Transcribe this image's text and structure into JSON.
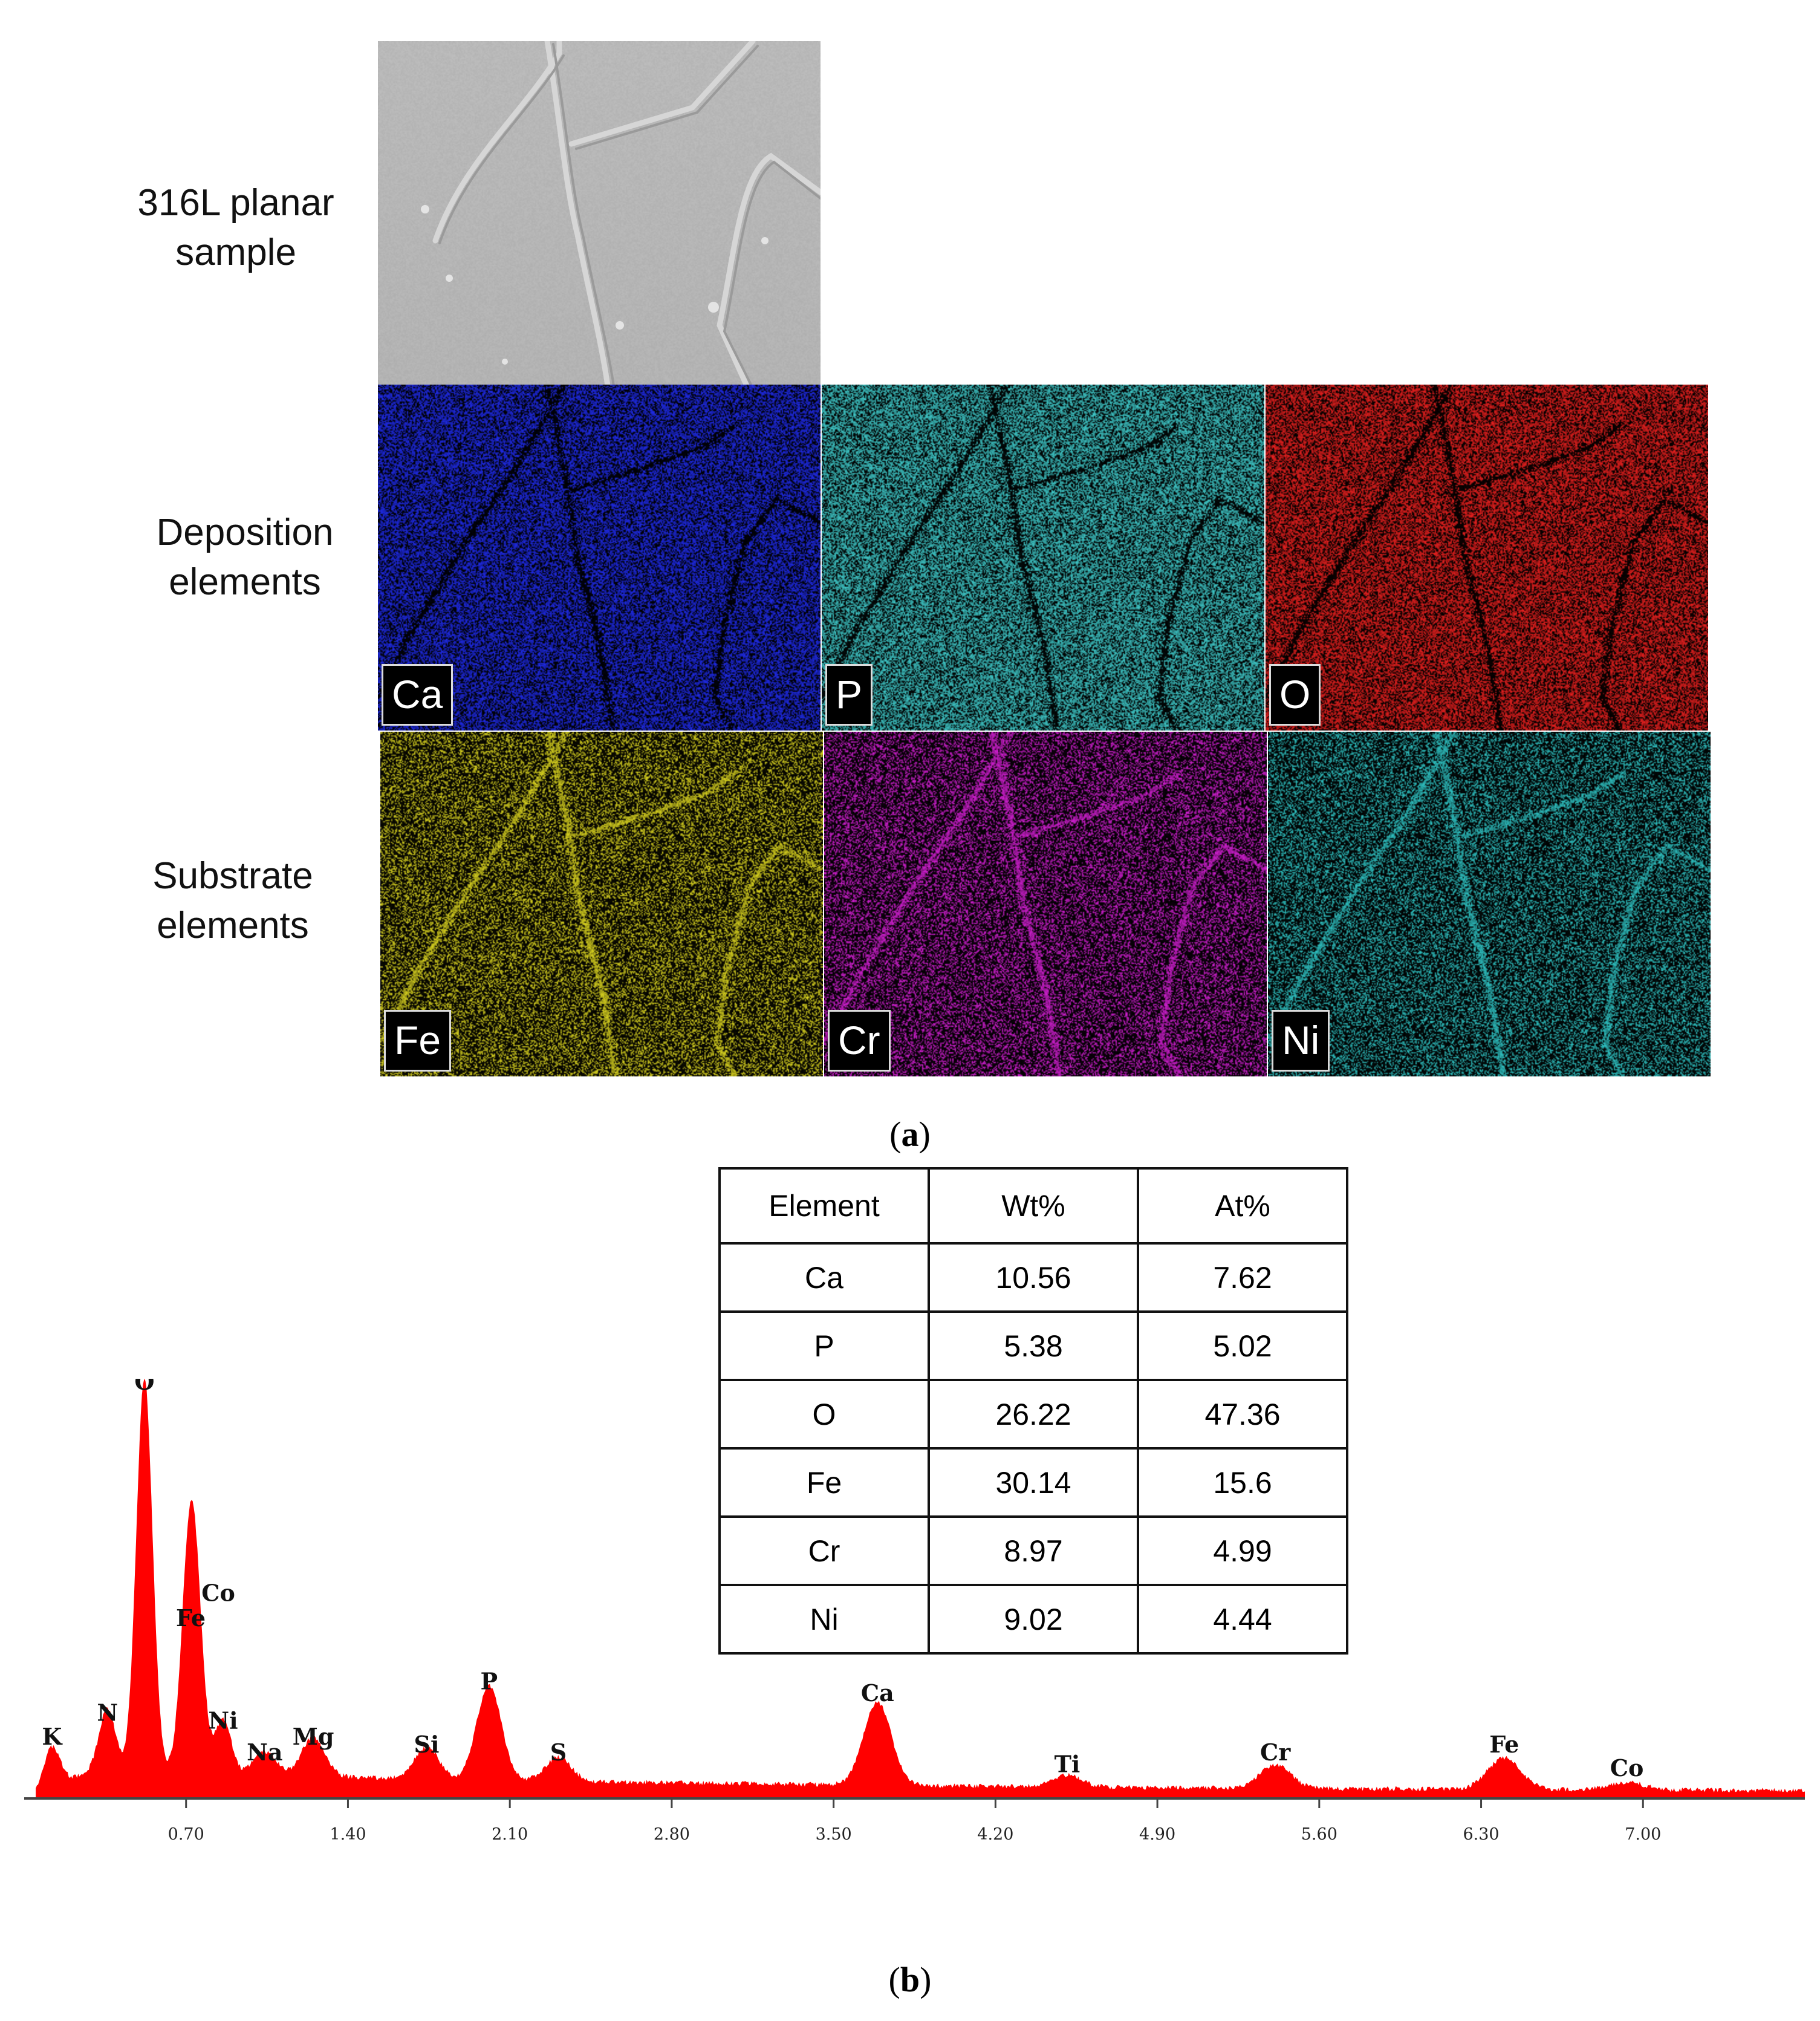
{
  "panel_a": {
    "caption_label": "a",
    "rows": [
      {
        "line1": "316L planar",
        "line2": "sample"
      },
      {
        "line1": "Deposition",
        "line2": "elements"
      },
      {
        "line1": "Substrate",
        "line2": "elements"
      }
    ],
    "maps": [
      {
        "element": "Ca",
        "color": "#1f2be8",
        "boundaries": "dark"
      },
      {
        "element": "P",
        "color": "#3fc8c8",
        "boundaries": "dark"
      },
      {
        "element": "O",
        "color": "#e8201f",
        "boundaries": "dark"
      },
      {
        "element": "Fe",
        "color": "#d9d320",
        "boundaries": "bright"
      },
      {
        "element": "Cr",
        "color": "#d21fd2",
        "boundaries": "bright"
      },
      {
        "element": "Ni",
        "color": "#2fc3c3",
        "boundaries": "bright"
      }
    ],
    "sem_image_color": "#b9b9b9"
  },
  "composition_table": {
    "headers": [
      "Element",
      "Wt%",
      "At%"
    ],
    "rows": [
      [
        "Ca",
        "10.56",
        "7.62"
      ],
      [
        "P",
        "5.38",
        "5.02"
      ],
      [
        "O",
        "26.22",
        "47.36"
      ],
      [
        "Fe",
        "30.14",
        "15.6"
      ],
      [
        "Cr",
        "8.97",
        "4.99"
      ],
      [
        "Ni",
        "9.02",
        "4.44"
      ]
    ]
  },
  "panel_b": {
    "caption_label": "b"
  },
  "chart_data": {
    "type": "area",
    "title": "",
    "xlabel": "",
    "ylabel": "",
    "xlim": [
      0.0,
      7.7
    ],
    "ylim": [
      0,
      100
    ],
    "x_ticks": [
      "0.70",
      "1.40",
      "2.10",
      "2.80",
      "3.50",
      "4.20",
      "4.90",
      "5.60",
      "6.30",
      "7.00"
    ],
    "x_tick_values": [
      0.7,
      1.4,
      2.1,
      2.8,
      3.5,
      4.2,
      4.9,
      5.6,
      6.3,
      7.0
    ],
    "fill_color": "#ff0000",
    "background_level": 6,
    "peaks": [
      {
        "label": "K",
        "x": 0.12,
        "height": 10
      },
      {
        "label": "N",
        "x": 0.36,
        "height": 16
      },
      {
        "label": "O",
        "x": 0.52,
        "height": 100
      },
      {
        "label": "Co",
        "x": 0.74,
        "height": 36
      },
      {
        "label": "Fe",
        "x": 0.71,
        "height": 40
      },
      {
        "label": "Ni",
        "x": 0.86,
        "height": 14
      },
      {
        "label": "Na",
        "x": 1.04,
        "height": 6
      },
      {
        "label": "Mg",
        "x": 1.25,
        "height": 10
      },
      {
        "label": "Si",
        "x": 1.74,
        "height": 8
      },
      {
        "label": "P",
        "x": 2.01,
        "height": 24
      },
      {
        "label": "S",
        "x": 2.31,
        "height": 6
      },
      {
        "label": "Ca",
        "x": 3.69,
        "height": 21
      },
      {
        "label": "Ti",
        "x": 4.51,
        "height": 3
      },
      {
        "label": "Cr",
        "x": 5.41,
        "height": 6
      },
      {
        "label": "Fe",
        "x": 6.4,
        "height": 8
      },
      {
        "label": "Co",
        "x": 6.93,
        "height": 2
      }
    ]
  }
}
